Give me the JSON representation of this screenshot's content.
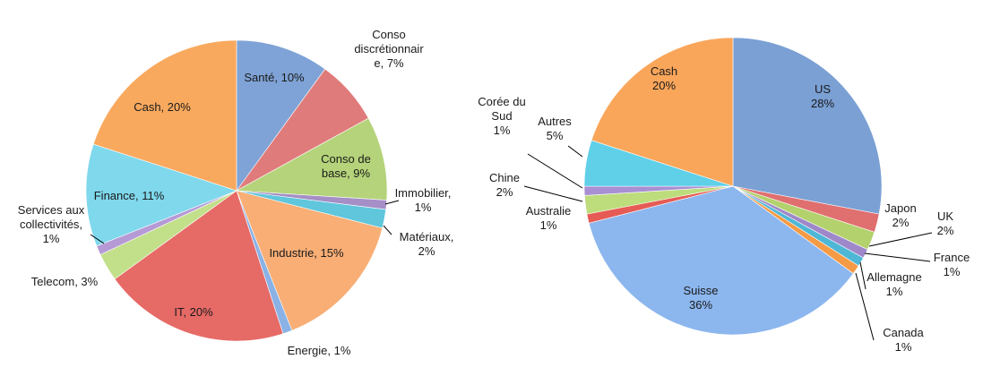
{
  "chart_data": [
    {
      "type": "pie",
      "title": "",
      "slices": [
        {
          "label": "Santé, 10%",
          "value": 10,
          "color": "#7fa3d6"
        },
        {
          "label": "Conso discrétionnaire, 7%",
          "value": 7,
          "color": "#e07b7b"
        },
        {
          "label": "Conso de base, 9%",
          "value": 9,
          "color": "#b5d37a"
        },
        {
          "label": "Immobilier, 1%",
          "value": 1,
          "color": "#a58fc6"
        },
        {
          "label": "Matériaux, 2%",
          "value": 2,
          "color": "#5fc6dc"
        },
        {
          "label": "Industrie, 15%",
          "value": 15,
          "color": "#f8ae75"
        },
        {
          "label": "Energie, 1%",
          "value": 1,
          "color": "#8ab2e6"
        },
        {
          "label": "IT, 20%",
          "value": 20,
          "color": "#e66a66"
        },
        {
          "label": "Telecom, 3%",
          "value": 3,
          "color": "#c2df8a"
        },
        {
          "label": "Services aux collectivités, 1%",
          "value": 1,
          "color": "#b59ad6"
        },
        {
          "label": "Finance, 11%",
          "value": 11,
          "color": "#7fd8ec"
        },
        {
          "label": "Cash, 20%",
          "value": 20,
          "color": "#f9a95e"
        }
      ]
    },
    {
      "type": "pie",
      "title": "",
      "slices": [
        {
          "label": "US 28%",
          "value": 28,
          "color": "#7aa0d4"
        },
        {
          "label": "Japon 2%",
          "value": 2,
          "color": "#e06f6f"
        },
        {
          "label": "UK 2%",
          "value": 2,
          "color": "#b3d16c"
        },
        {
          "label": "France 1%",
          "value": 1,
          "color": "#9f88c9"
        },
        {
          "label": "Allemagne 1%",
          "value": 1,
          "color": "#4fb7d6"
        },
        {
          "label": "Canada 1%",
          "value": 1,
          "color": "#f59a45"
        },
        {
          "label": "Suisse 36%",
          "value": 36,
          "color": "#8cb6ee"
        },
        {
          "label": "Australie 1%",
          "value": 1,
          "color": "#e65b55"
        },
        {
          "label": "Chine 2%",
          "value": 2,
          "color": "#bddc7c"
        },
        {
          "label": "Corée du Sud 1%",
          "value": 1,
          "color": "#a890d2"
        },
        {
          "label": "Autres 5%",
          "value": 5,
          "color": "#5fd0e8"
        },
        {
          "label": "Cash 20%",
          "value": 20,
          "color": "#f9a65b"
        }
      ]
    }
  ]
}
